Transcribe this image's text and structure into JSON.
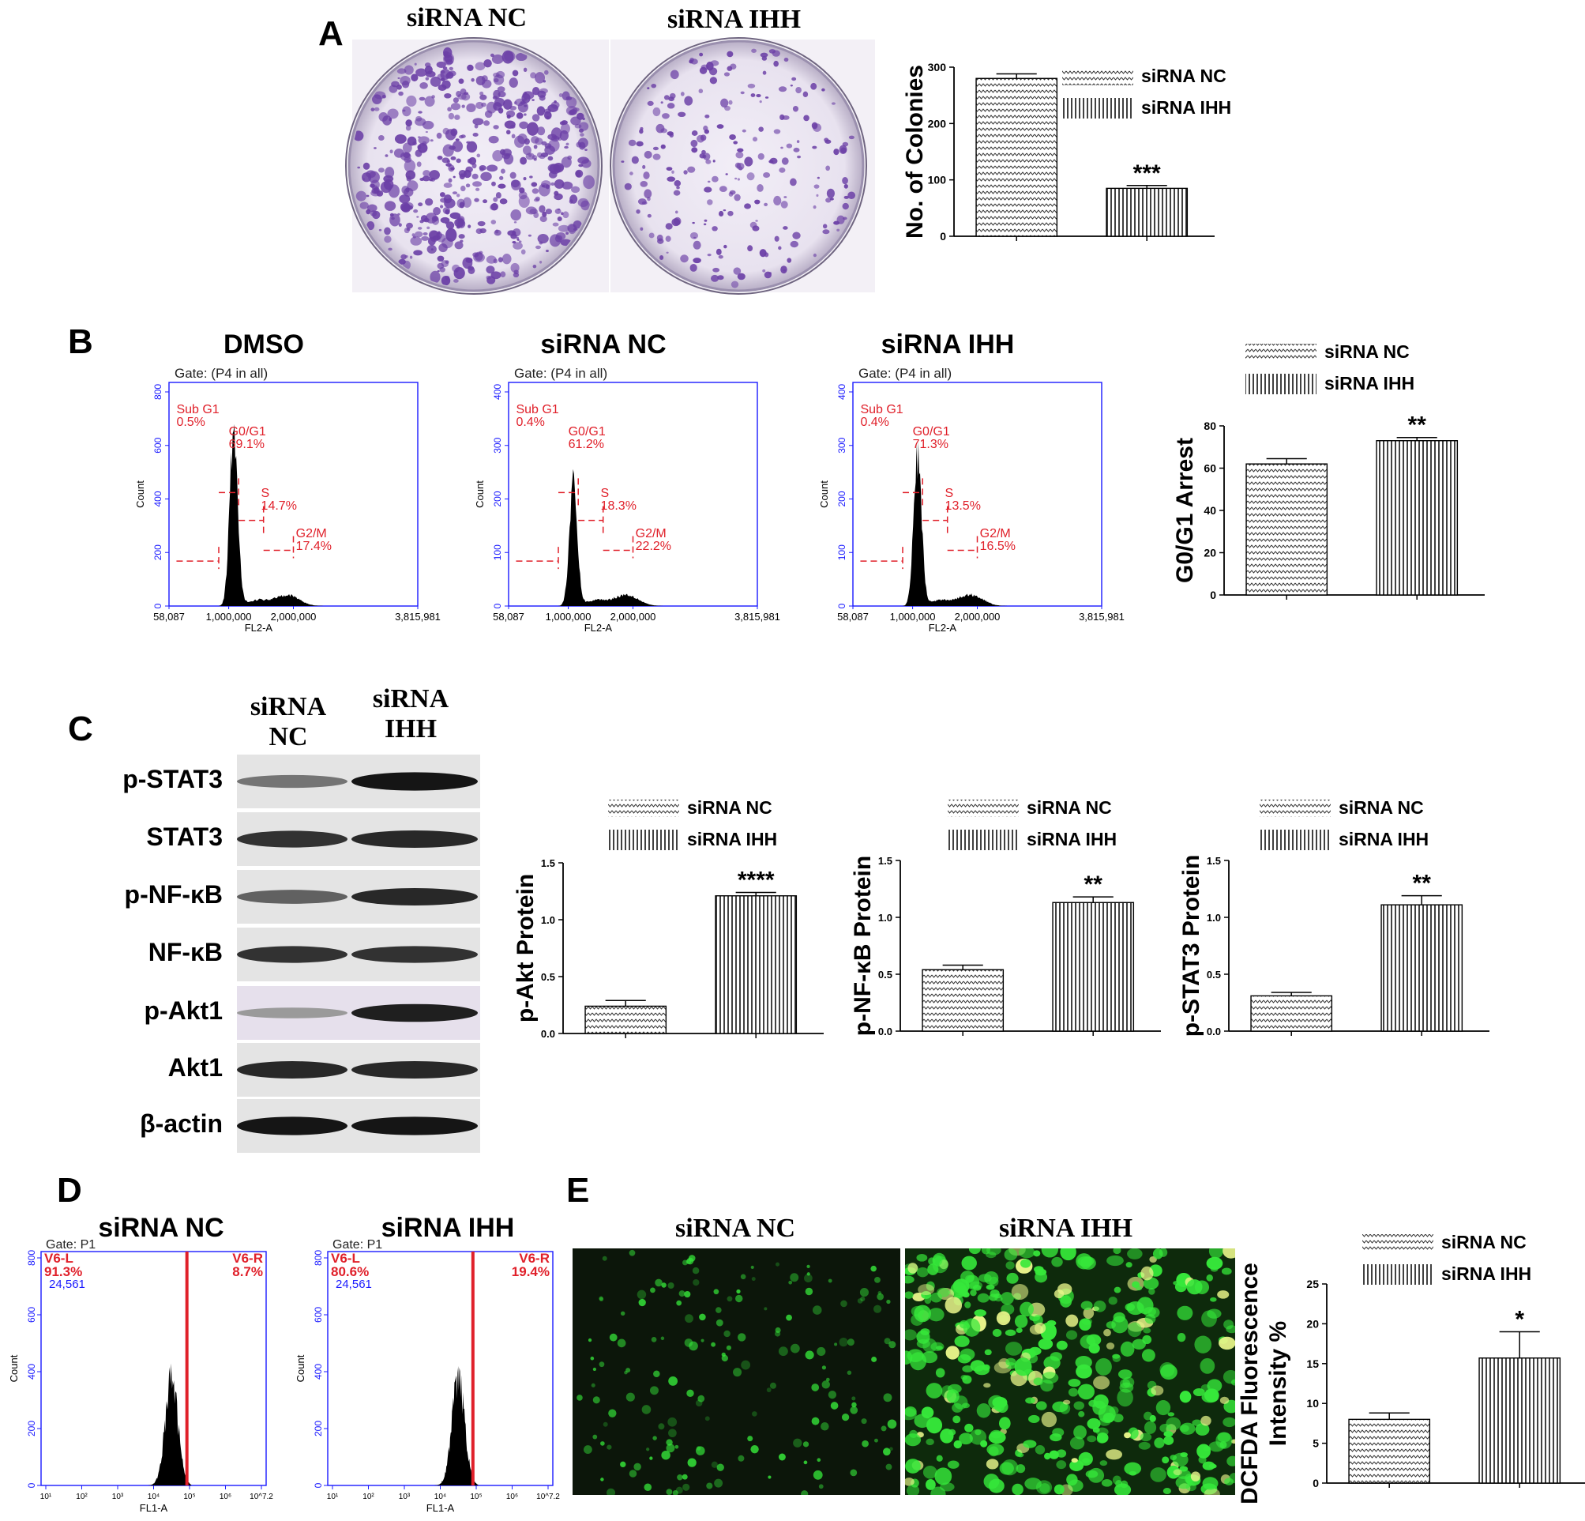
{
  "panels": {
    "A": {
      "letter": "A",
      "dish_labels": [
        "siRNA NC",
        "siRNA IHH"
      ],
      "chart": {
        "type": "bar",
        "categories": [
          "siRNA NC",
          "siRNA IHH"
        ],
        "values": [
          280,
          85
        ],
        "errors": [
          8,
          5
        ],
        "ylabel": "No. of Colonies",
        "ylim": [
          0,
          300
        ],
        "yticks": [
          "0",
          "100",
          "200",
          "300"
        ],
        "significance": [
          "",
          "***"
        ],
        "legend": [
          "siRNA  NC",
          "siRNA IHH"
        ]
      }
    },
    "B": {
      "letter": "B",
      "flow_plots": [
        {
          "title": "DMSO",
          "gate": "Gate: (P4 in all)",
          "ylabel": "Count",
          "xlabel": "FL2-A",
          "yticks": [
            "0",
            "200",
            "400",
            "600",
            "800"
          ],
          "xticks": [
            "58,087",
            "1,000,000",
            "2,000,000",
            "3,815,981"
          ],
          "subg1": [
            "Sub G1",
            "0.5%"
          ],
          "g0g1": [
            "G0/G1",
            "69.1%"
          ],
          "s": [
            "S",
            "14.7%"
          ],
          "g2m": [
            "G2/M",
            "17.4%"
          ],
          "peak_fraction": 0.81
        },
        {
          "title": "siRNA NC",
          "gate": "Gate: (P4 in all)",
          "ylabel": "Count",
          "xlabel": "FL2-A",
          "yticks": [
            "0",
            "100",
            "200",
            "300",
            "400"
          ],
          "xticks": [
            "58,087",
            "1,000,000",
            "2,000,000",
            "3,815,981"
          ],
          "subg1": [
            "Sub G1",
            "0.4%"
          ],
          "g0g1": [
            "G0/G1",
            "61.2%"
          ],
          "s": [
            "S",
            "18.3%"
          ],
          "g2m": [
            "G2/M",
            "22.2%"
          ],
          "peak_fraction": 0.55
        },
        {
          "title": "siRNA IHH",
          "gate": "Gate: (P4 in all)",
          "ylabel": "Count",
          "xlabel": "FL2-A",
          "yticks": [
            "0",
            "100",
            "200",
            "300",
            "400"
          ],
          "xticks": [
            "58,087",
            "1,000,000",
            "2,000,000",
            "3,815,981"
          ],
          "subg1": [
            "Sub G1",
            "0.4%"
          ],
          "g0g1": [
            "G0/G1",
            "71.3%"
          ],
          "s": [
            "S",
            "13.5%"
          ],
          "g2m": [
            "G2/M",
            "16.5%"
          ],
          "peak_fraction": 0.69
        }
      ],
      "chart": {
        "type": "bar",
        "categories": [
          "siRNA NC",
          "siRNA IHH"
        ],
        "values": [
          62,
          73
        ],
        "errors": [
          2.5,
          1.5
        ],
        "ylabel": "G0/G1 Arrest",
        "ylim": [
          0,
          80
        ],
        "yticks": [
          "0",
          "20",
          "40",
          "60",
          "80"
        ],
        "significance": [
          "",
          "**"
        ],
        "legend": [
          "siRNA  NC",
          "siRNA IHH"
        ]
      }
    },
    "C": {
      "letter": "C",
      "lane_labels": [
        [
          "siRNA",
          "NC"
        ],
        [
          "siRNA",
          "IHH"
        ]
      ],
      "blot_rows": [
        "p-STAT3",
        "STAT3",
        "p-NF-κB",
        "NF-κB",
        "p-Akt1",
        "Akt1",
        "β-actin"
      ],
      "band_intensity": [
        [
          0.45,
          0.95
        ],
        [
          0.8,
          0.85
        ],
        [
          0.55,
          0.85
        ],
        [
          0.8,
          0.8
        ],
        [
          0.25,
          0.9
        ],
        [
          0.85,
          0.85
        ],
        [
          0.95,
          0.95
        ]
      ],
      "charts": [
        {
          "type": "bar",
          "categories": [
            "siRNA NC",
            "siRNA IHH"
          ],
          "values": [
            0.24,
            1.21
          ],
          "errors": [
            0.05,
            0.03
          ],
          "ylabel": "p-Akt Protein",
          "ylim": [
            0,
            1.5
          ],
          "yticks": [
            "0.0",
            "0.5",
            "1.0",
            "1.5"
          ],
          "significance": [
            "",
            "****"
          ],
          "legend": [
            "siRNA  NC",
            "siRNA IHH"
          ]
        },
        {
          "type": "bar",
          "categories": [
            "siRNA NC",
            "siRNA IHH"
          ],
          "values": [
            0.54,
            1.13
          ],
          "errors": [
            0.04,
            0.05
          ],
          "ylabel": "p-NF-κB Protein",
          "ylim": [
            0,
            1.5
          ],
          "yticks": [
            "0.0",
            "0.5",
            "1.0",
            "1.5"
          ],
          "significance": [
            "",
            "**"
          ],
          "legend": [
            "siRNA  NC",
            "siRNA IHH"
          ]
        },
        {
          "type": "bar",
          "categories": [
            "siRNA NC",
            "siRNA IHH"
          ],
          "values": [
            0.31,
            1.11
          ],
          "errors": [
            0.03,
            0.08
          ],
          "ylabel": "p-STAT3 Protein",
          "ylim": [
            0,
            1.5
          ],
          "yticks": [
            "0.0",
            "0.5",
            "1.0",
            "1.5"
          ],
          "significance": [
            "",
            "**"
          ],
          "legend": [
            "siRNA  NC",
            "siRNA IHH"
          ]
        }
      ]
    },
    "D": {
      "letter": "D",
      "flow_plots": [
        {
          "title": "siRNA NC",
          "gate": "Gate: P1",
          "ylabel": "Count",
          "xlabel": "FL1-A",
          "yticks": [
            "0",
            "200",
            "400",
            "600",
            "800"
          ],
          "xticks": [
            "10¹",
            "10²",
            "10³",
            "10⁴",
            "10⁵",
            "10⁶",
            "10^7.2"
          ],
          "left_gate": [
            "V6-L",
            "91.3%"
          ],
          "right_gate": [
            "V6-R",
            "8.7%"
          ],
          "events": "24,561"
        },
        {
          "title": "siRNA IHH",
          "gate": "Gate: P1",
          "ylabel": "Count",
          "xlabel": "FL1-A",
          "yticks": [
            "0",
            "200",
            "400",
            "600",
            "800"
          ],
          "xticks": [
            "10¹",
            "10²",
            "10³",
            "10⁴",
            "10⁵",
            "10⁶",
            "10^7.2"
          ],
          "left_gate": [
            "V6-L",
            "80.6%"
          ],
          "right_gate": [
            "V6-R",
            "19.4%"
          ],
          "events": "24,561"
        }
      ]
    },
    "E": {
      "letter": "E",
      "image_labels": [
        "siRNA NC",
        "siRNA IHH"
      ],
      "chart": {
        "type": "bar",
        "categories": [
          "siRNA NC",
          "siRNA IHH"
        ],
        "values": [
          8,
          15.7
        ],
        "errors": [
          0.8,
          3.3
        ],
        "ylabel": "DCFDA Fluorescence Intensity %",
        "ylabel_lines": [
          "DCFDA Fluorescence",
          "Intensity %"
        ],
        "ylim": [
          0,
          25
        ],
        "yticks": [
          "0",
          "5",
          "10",
          "15",
          "20",
          "25"
        ],
        "significance": [
          "",
          "*"
        ],
        "legend": [
          "siRNA  NC",
          "siRNA IHH"
        ]
      }
    }
  },
  "colors": {
    "flow_axis": "#1a1aff",
    "flow_gate": "#e0202a",
    "stain": "#6b3fa6",
    "fluor": "#36e83a"
  }
}
